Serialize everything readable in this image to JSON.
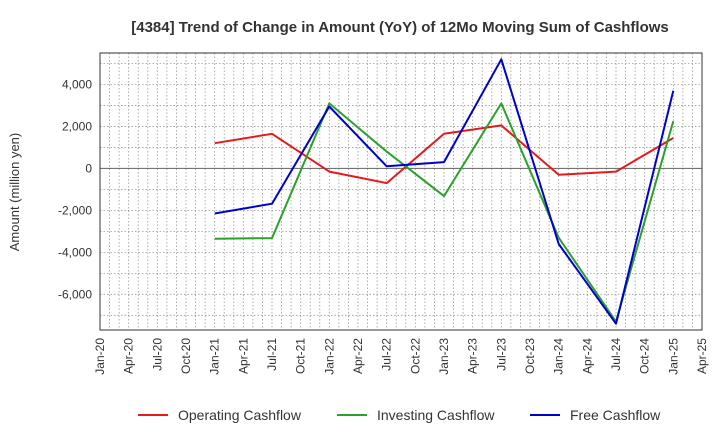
{
  "chart_data": {
    "type": "line",
    "title": "[4384]  Trend of Change in Amount (YoY) of 12Mo Moving Sum of Cashflows",
    "xlabel": "",
    "ylabel": "Amount (million yen)",
    "x_ticks": [
      "Jan-20",
      "Apr-20",
      "Jul-20",
      "Oct-20",
      "Jan-21",
      "Apr-21",
      "Jul-21",
      "Oct-21",
      "Jan-22",
      "Apr-22",
      "Jul-22",
      "Oct-22",
      "Jan-23",
      "Apr-23",
      "Jul-23",
      "Oct-23",
      "Jan-24",
      "Apr-24",
      "Jul-24",
      "Oct-24",
      "Jan-25",
      "Apr-25"
    ],
    "y_ticks": [
      4000,
      2000,
      0,
      -2000,
      -4000,
      -6000
    ],
    "y_tick_labels": [
      "4,000",
      "2,000",
      "0",
      "-2,000",
      "-4,000",
      "-6,000"
    ],
    "ylim": [
      -7700,
      5500
    ],
    "grid": true,
    "legend_position": "bottom",
    "series": [
      {
        "name": "Operating Cashflow",
        "color": "#e41a1c",
        "points": [
          [
            "Jan-21",
            1200
          ],
          [
            "Jul-21",
            1650
          ],
          [
            "Jan-22",
            -150
          ],
          [
            "Jul-22",
            -700
          ],
          [
            "Jan-23",
            1650
          ],
          [
            "Jul-23",
            2050
          ],
          [
            "Jan-24",
            -300
          ],
          [
            "Jul-24",
            -150
          ],
          [
            "Jan-25",
            1450
          ]
        ]
      },
      {
        "name": "Investing Cashflow",
        "color": "#2ca02c",
        "points": [
          [
            "Jan-21",
            -3350
          ],
          [
            "Jul-21",
            -3320
          ],
          [
            "Jan-22",
            3100
          ],
          [
            "Jul-22",
            800
          ],
          [
            "Jan-23",
            -1320
          ],
          [
            "Jul-23",
            3100
          ],
          [
            "Jan-24",
            -3300
          ],
          [
            "Jul-24",
            -7300
          ],
          [
            "Jan-25",
            2250
          ]
        ]
      },
      {
        "name": "Free Cashflow",
        "color": "#0000cc",
        "points": [
          [
            "Jan-21",
            -2150
          ],
          [
            "Jul-21",
            -1680
          ],
          [
            "Jan-22",
            2950
          ],
          [
            "Jul-22",
            100
          ],
          [
            "Jan-23",
            300
          ],
          [
            "Jul-23",
            5200
          ],
          [
            "Jan-24",
            -3600
          ],
          [
            "Jul-24",
            -7400
          ],
          [
            "Jan-25",
            3700
          ]
        ]
      }
    ]
  }
}
